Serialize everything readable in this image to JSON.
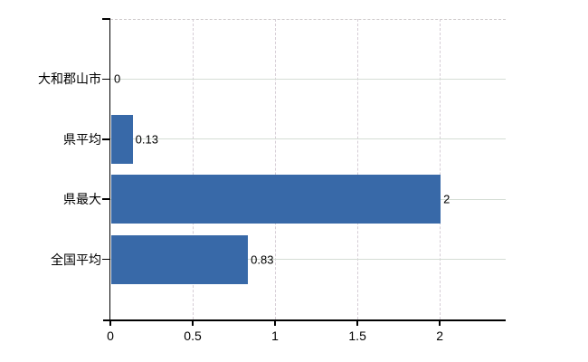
{
  "chart_data": {
    "type": "bar",
    "orientation": "horizontal",
    "title": "",
    "categories": [
      "大和郡山市",
      "県平均",
      "県最大",
      "全国平均"
    ],
    "values": [
      0,
      0.13,
      2,
      0.83
    ],
    "value_labels": [
      "0",
      "0.13",
      "2",
      "0.83"
    ],
    "x_tick_values": [
      0,
      0.5,
      1,
      1.5,
      2
    ],
    "x_tick_labels": [
      "0",
      "0.5",
      "1",
      "1.5",
      "2"
    ],
    "xlim": [
      0,
      2.4
    ],
    "grid": "on",
    "legend": "none",
    "colors": {
      "bar": "#3869a8",
      "grid_horizontal": "#d5ddd5",
      "grid_vertical": "#d5cdd5",
      "plot_top_border": "#d0cccd",
      "axis": "#000000",
      "text": "#000000",
      "background": "#ffffff"
    }
  }
}
